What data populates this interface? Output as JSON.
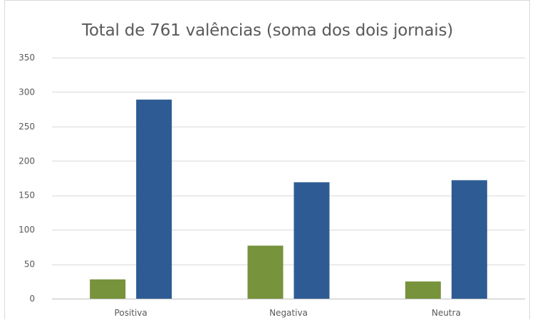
{
  "chart_data": {
    "type": "bar",
    "title": "Total de 761 valências (soma dos dois jornais)",
    "xlabel": "",
    "ylabel": "",
    "categories": [
      "Positiva",
      "Negativa",
      "Neutra"
    ],
    "series": [
      {
        "color": "#77933c",
        "values": [
          28,
          77,
          25
        ]
      },
      {
        "color": "#2e5b93",
        "values": [
          289,
          169,
          172
        ]
      }
    ],
    "ylim": [
      0,
      350
    ],
    "yticks": [
      0,
      50,
      100,
      150,
      200,
      250,
      300,
      350
    ],
    "grid": true,
    "legend": "none"
  }
}
